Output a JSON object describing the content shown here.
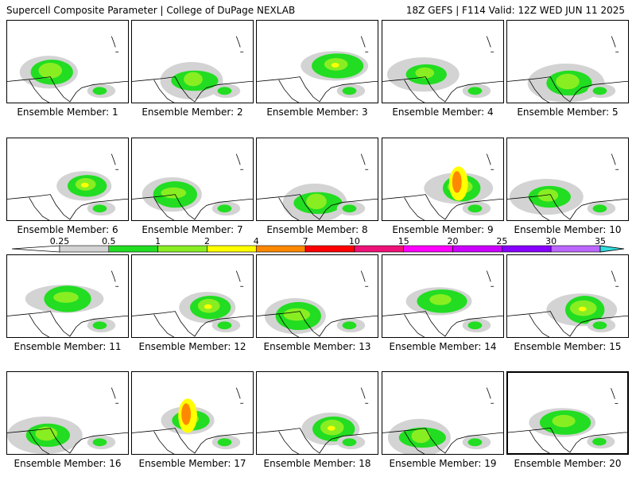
{
  "header": {
    "left": "Supercell Composite Parameter | College of DuPage NEXLAB",
    "right": "18Z GEFS | F114 Valid: 12Z WED JUN 11 2025"
  },
  "label_prefix": "Ensemble Member: ",
  "members": [
    {
      "number": "1"
    },
    {
      "number": "2"
    },
    {
      "number": "3"
    },
    {
      "number": "4"
    },
    {
      "number": "5"
    },
    {
      "number": "6"
    },
    {
      "number": "7"
    },
    {
      "number": "8"
    },
    {
      "number": "9"
    },
    {
      "number": "10"
    },
    {
      "number": "11"
    },
    {
      "number": "12"
    },
    {
      "number": "13"
    },
    {
      "number": "14"
    },
    {
      "number": "15"
    },
    {
      "number": "16"
    },
    {
      "number": "17"
    },
    {
      "number": "18"
    },
    {
      "number": "19"
    },
    {
      "number": "20",
      "highlighted": true
    }
  ],
  "colorbar": {
    "labels": [
      "0.25",
      "0.5",
      "1",
      "2",
      "4",
      "7",
      "10",
      "15",
      "20",
      "25",
      "30",
      "35"
    ],
    "colors": [
      "#d3d3d3",
      "#22dd22",
      "#88ee22",
      "#ffff00",
      "#ff8800",
      "#ff0000",
      "#ee1177",
      "#ff00ff",
      "#cc00ff",
      "#8800ff",
      "#bb66ff",
      "#33dddd"
    ]
  }
}
